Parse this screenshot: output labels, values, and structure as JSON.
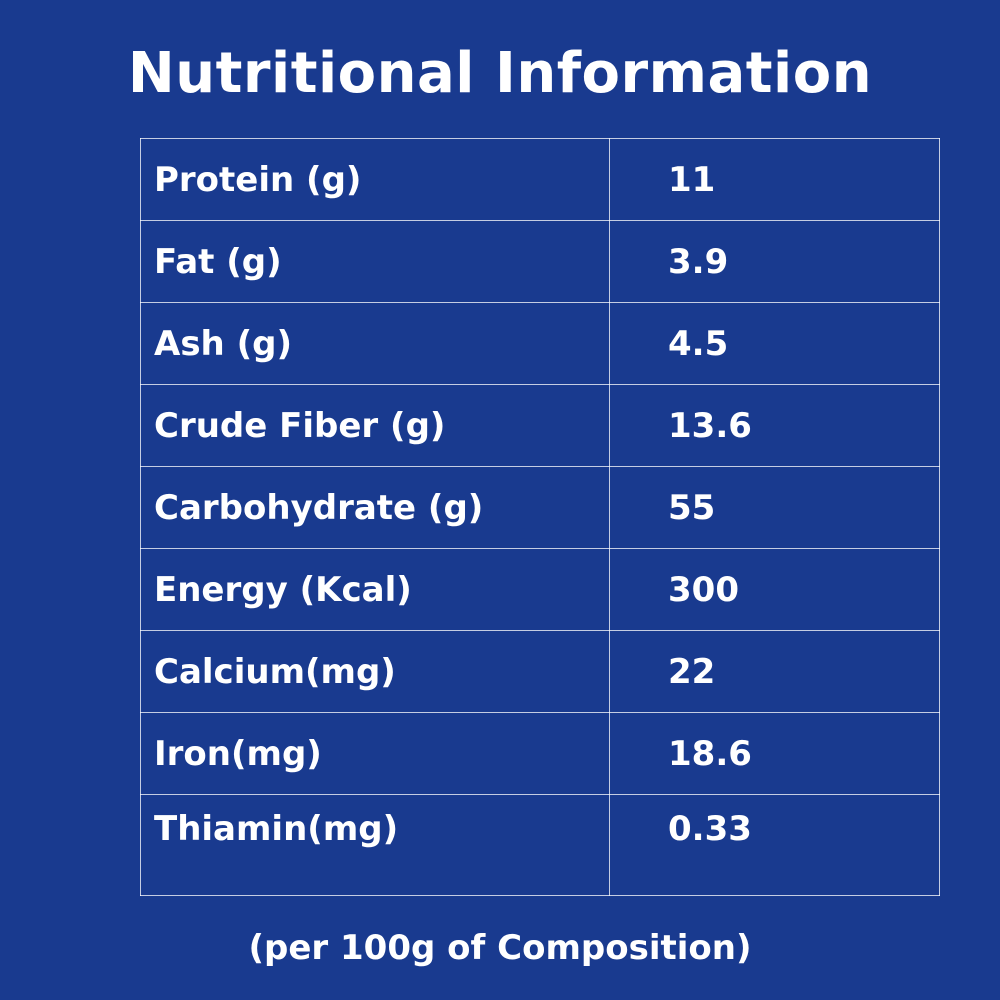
{
  "title": "Nutritional Information",
  "rows": [
    {
      "label": "Protein (g)",
      "value": "11"
    },
    {
      "label": "Fat (g)",
      "value": "3.9"
    },
    {
      "label": "Ash (g)",
      "value": "4.5"
    },
    {
      "label": "Crude Fiber (g)",
      "value": "13.6"
    },
    {
      "label": "Carbohydrate (g)",
      "value": "55"
    },
    {
      "label": "Energy (Kcal)",
      "value": "300"
    },
    {
      "label": "Calcium(mg)",
      "value": "22"
    },
    {
      "label": "Iron(mg)",
      "value": "18.6"
    },
    {
      "label": "Thiamin(mg)",
      "value": "0.33"
    }
  ],
  "footnote": "(per 100g of Composition)",
  "colors": {
    "background": "#193a8f",
    "text": "#ffffff",
    "grid": "#c8d0e8"
  }
}
